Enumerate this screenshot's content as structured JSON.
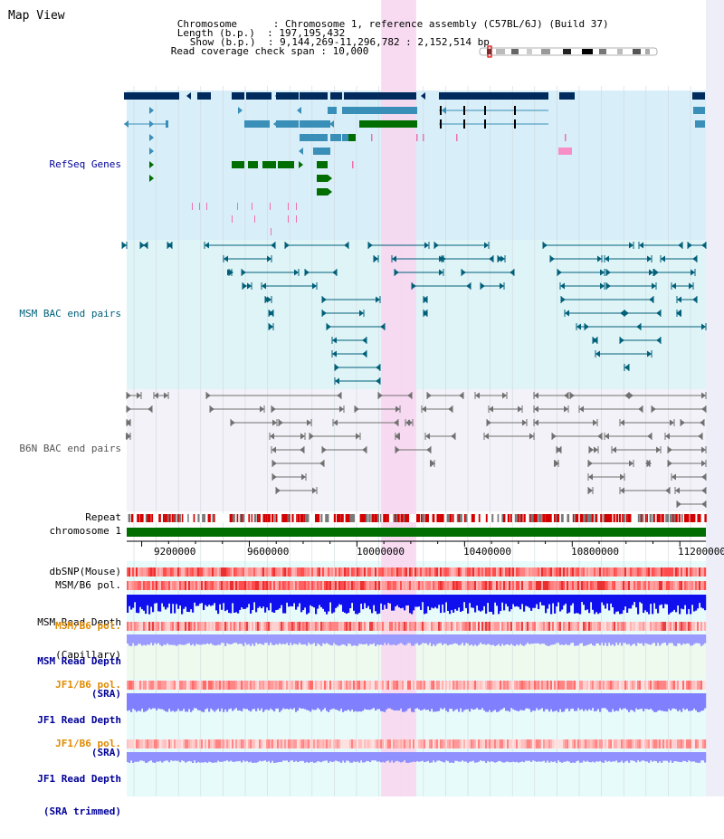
{
  "app": {
    "title": "Map View"
  },
  "info": {
    "chromosome_key": "Chromosome",
    "chromosome_val": "Chromosome 1, reference assembly (C57BL/6J) (Build 37)",
    "length_key": "Length (b.p.)",
    "length_val": "197,195,432",
    "show_key": "Show (b.p.)",
    "show_val": "9,144,269-11,296,782 : 2,152,514 bp",
    "span_key": "Read coverage check span",
    "span_val": "10,000"
  },
  "tracks": {
    "refseq": "RefSeq Genes",
    "msm_bac": "MSM BAC end pairs",
    "b6n_bac": "B6N BAC end pairs",
    "repeat": "Repeat",
    "chrom": "chromosome 1",
    "dbsnp": "dbSNP(Mouse)",
    "msm_b6_pol": "MSM/B6 pol.",
    "msm_depth_cap_1": "MSM Read Depth",
    "msm_depth_cap_2": "(Capillary)",
    "msm_b6_pol2": "MSM/B6 pol.",
    "msm_depth_sra_1": "MSM Read Depth",
    "msm_depth_sra_2": "(SRA)",
    "jf1_b6_pol": "JF1/B6 pol.",
    "jf1_depth_sra_1": "JF1 Read Depth",
    "jf1_depth_sra_2": "(SRA)",
    "jf1_b6_pol2": "JF1/B6 pol.",
    "jf1_depth_trim_1": "JF1 Read Depth",
    "jf1_depth_trim_2": "(SRA trimmed)"
  },
  "axis": {
    "ticks": [
      "9200000",
      "9600000",
      "10000000",
      "10400000",
      "10800000",
      "11200000"
    ],
    "tick_values": [
      9200000,
      9600000,
      10000000,
      10400000,
      10800000,
      11200000
    ],
    "range": [
      9144269,
      11296782
    ]
  },
  "highlight": {
    "start": 10090000,
    "end": 10220000,
    "color": "#f7d7f0"
  },
  "colors": {
    "refseq_bg": "#d8eef8",
    "msm_bg": "#dff4f7",
    "b6n_bg": "#f2f2f8",
    "refseq_dark": "#002b5c",
    "refseq_mid": "#3a8fb8",
    "refseq_green": "#006e00",
    "msm_line": "#00607a",
    "b6n_line": "#707070",
    "repeat_red": "#d40000",
    "chrom_green": "#006e00",
    "depth_blue": "#1010ee",
    "depth_light": "#8080ff",
    "orange_label": "#e08a00",
    "blue_label": "#000099"
  }
}
